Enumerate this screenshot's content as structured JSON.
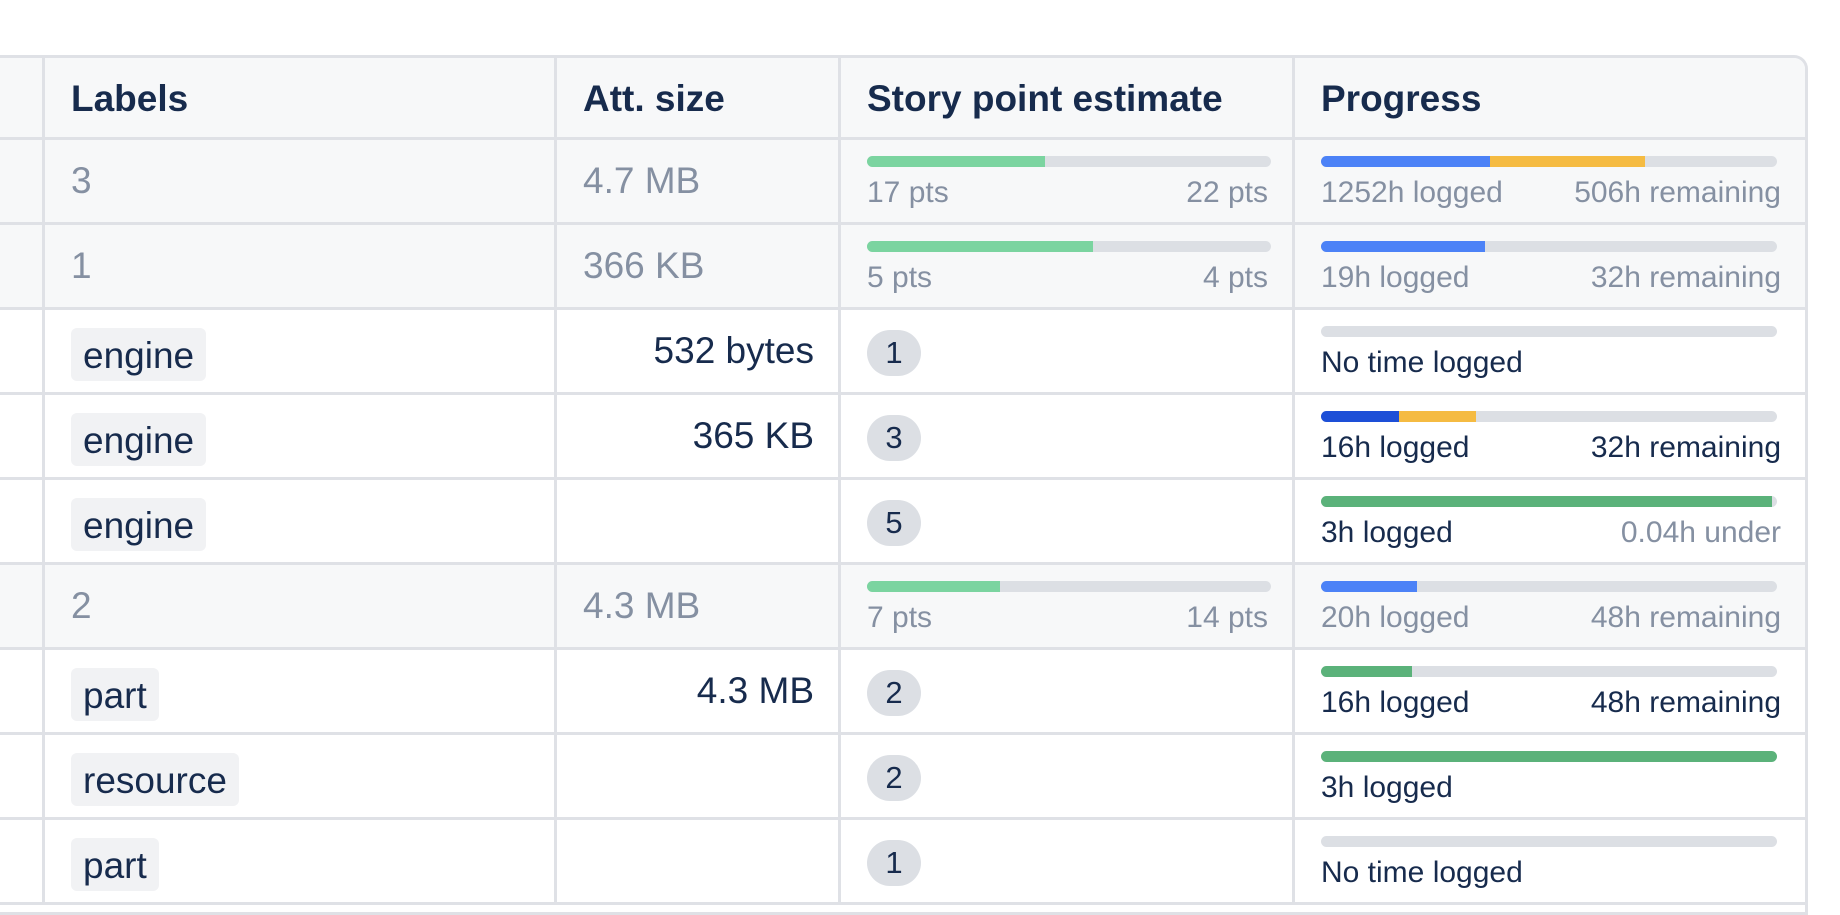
{
  "columns": {
    "labels": "Labels",
    "att_size": "Att. size",
    "story_points": "Story point estimate",
    "progress": "Progress"
  },
  "colors": {
    "blue": "#4c82f7",
    "dark_blue": "#1d4fd7",
    "yellow": "#f5bb42",
    "green_sp": "#7bd4a0",
    "green_progress": "#5bb27a",
    "track": "#dcdfe4"
  },
  "rows": [
    {
      "type": "parent",
      "label_count": "3",
      "att_size": "4.7 MB",
      "sp": {
        "done": "17 pts",
        "total": "22 pts",
        "fraction": 0.44
      },
      "progress": {
        "left": "1252h logged",
        "right": "506h remaining",
        "logged_fraction": 0.37,
        "remaining_fraction": 0.34
      }
    },
    {
      "type": "parent",
      "label_count": "1",
      "att_size": "366 KB",
      "sp": {
        "done": "5 pts",
        "total": "4 pts",
        "fraction": 0.56
      },
      "progress": {
        "left": "19h logged",
        "right": "32h remaining",
        "logged_fraction": 0.36
      }
    },
    {
      "type": "child",
      "label": "engine",
      "att_size": "532 bytes",
      "points": "1",
      "progress": {
        "left": "No time logged",
        "logged_fraction": 0
      }
    },
    {
      "type": "child",
      "label": "engine",
      "att_size": "365 KB",
      "points": "3",
      "progress": {
        "left": "16h logged",
        "right": "32h remaining",
        "logged_fraction": 0.17,
        "remaining_fraction": 0.17
      }
    },
    {
      "type": "child",
      "label": "engine",
      "att_size": "",
      "points": "5",
      "progress": {
        "left": "3h logged",
        "right": "0.04h under",
        "logged_fraction": 0.99
      }
    },
    {
      "type": "parent",
      "label_count": "2",
      "att_size": "4.3 MB",
      "sp": {
        "done": "7 pts",
        "total": "14 pts",
        "fraction": 0.33
      },
      "progress": {
        "left": "20h logged",
        "right": "48h remaining",
        "logged_fraction": 0.21
      }
    },
    {
      "type": "child",
      "label": "part",
      "att_size": "4.3 MB",
      "points": "2",
      "progress": {
        "left": "16h logged",
        "right": "48h remaining",
        "logged_fraction": 0.2
      }
    },
    {
      "type": "child",
      "label": "resource",
      "att_size": "",
      "points": "2",
      "progress": {
        "left": "3h logged",
        "logged_fraction": 1
      }
    },
    {
      "type": "child",
      "label": "part",
      "att_size": "",
      "points": "1",
      "progress": {
        "left": "No time logged",
        "logged_fraction": 0
      }
    }
  ]
}
